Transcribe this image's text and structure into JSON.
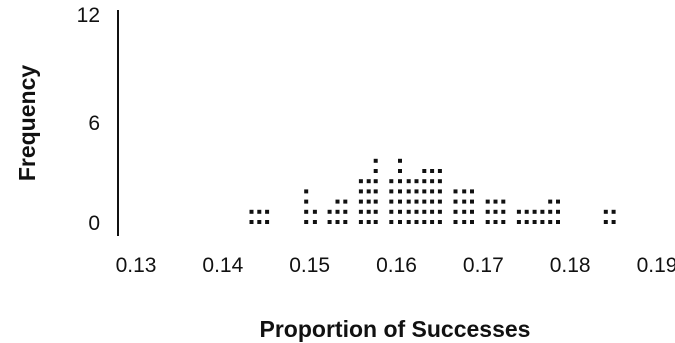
{
  "chart_data": {
    "type": "dot plot",
    "xlabel": "Proportion of Successes",
    "ylabel": "Frequency",
    "xlim": [
      0.13,
      0.19
    ],
    "ylim": [
      0,
      12
    ],
    "x_ticks": [
      "0.13",
      "0.14",
      "0.15",
      "0.16",
      "0.17",
      "0.18",
      "0.19"
    ],
    "y_ticks": [
      "0",
      "6",
      "12"
    ],
    "grid": false,
    "legend": "none",
    "dot_color": "#111111",
    "points": [
      {
        "x": 0.1433,
        "count": 2
      },
      {
        "x": 0.1442,
        "count": 2
      },
      {
        "x": 0.1451,
        "count": 2
      },
      {
        "x": 0.1496,
        "count": 4
      },
      {
        "x": 0.1506,
        "count": 2
      },
      {
        "x": 0.1523,
        "count": 2
      },
      {
        "x": 0.1532,
        "count": 3
      },
      {
        "x": 0.1541,
        "count": 3
      },
      {
        "x": 0.1559,
        "count": 5
      },
      {
        "x": 0.1568,
        "count": 5
      },
      {
        "x": 0.1576,
        "count": 7
      },
      {
        "x": 0.1594,
        "count": 5
      },
      {
        "x": 0.1604,
        "count": 7
      },
      {
        "x": 0.1614,
        "count": 5
      },
      {
        "x": 0.1623,
        "count": 5
      },
      {
        "x": 0.1632,
        "count": 6
      },
      {
        "x": 0.1641,
        "count": 6
      },
      {
        "x": 0.165,
        "count": 6
      },
      {
        "x": 0.1668,
        "count": 4
      },
      {
        "x": 0.1678,
        "count": 4
      },
      {
        "x": 0.1687,
        "count": 4
      },
      {
        "x": 0.1705,
        "count": 3
      },
      {
        "x": 0.1714,
        "count": 3
      },
      {
        "x": 0.1723,
        "count": 3
      },
      {
        "x": 0.1741,
        "count": 2
      },
      {
        "x": 0.175,
        "count": 2
      },
      {
        "x": 0.1759,
        "count": 2
      },
      {
        "x": 0.1768,
        "count": 2
      },
      {
        "x": 0.1777,
        "count": 3
      },
      {
        "x": 0.1786,
        "count": 3
      },
      {
        "x": 0.1841,
        "count": 2
      },
      {
        "x": 0.185,
        "count": 2
      }
    ]
  }
}
